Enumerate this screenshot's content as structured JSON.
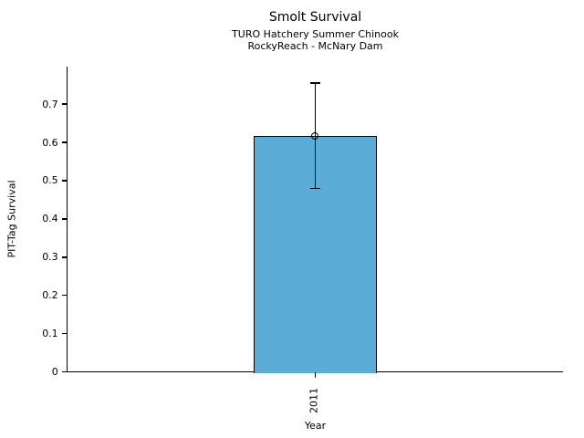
{
  "window": {
    "background_color": "#ffffff",
    "text_color": "#000000"
  },
  "chart_data": {
    "type": "bar",
    "title": "Smolt Survival",
    "subtitle_lines": [
      "TURO Hatchery Summer Chinook",
      "RockyReach - McNary Dam"
    ],
    "xlabel": "Year",
    "ylabel": "PIT-Tag Survival",
    "categories": [
      "2011"
    ],
    "values": [
      0.617
    ],
    "error_low": [
      0.48
    ],
    "error_high": [
      0.755
    ],
    "ylim": [
      0,
      0.798
    ],
    "ytick_values": [
      0,
      0.1,
      0.2,
      0.3,
      0.4,
      0.5,
      0.6,
      0.7
    ],
    "ytick_labels": [
      "0",
      "0.1",
      "0.2",
      "0.3",
      "0.4",
      "0.5",
      "0.6",
      "0.7"
    ],
    "bar_color": "#5BACD6",
    "edge_color": "#000000",
    "marker": "open-circle",
    "grid": false,
    "legend_position": "none"
  }
}
